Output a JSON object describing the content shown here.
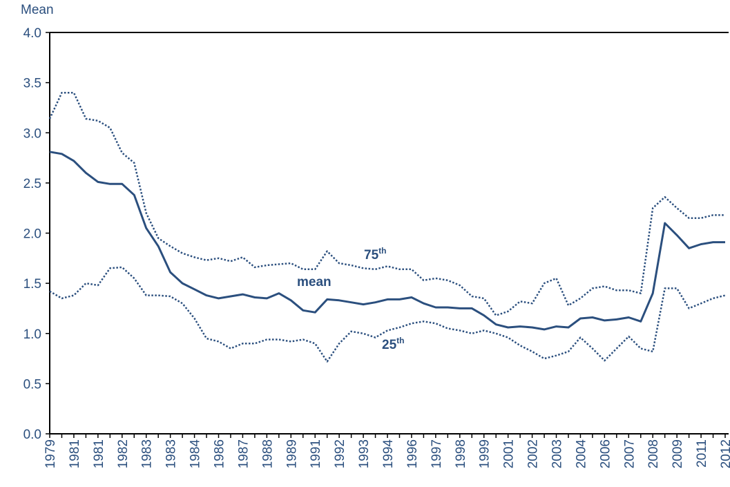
{
  "chart_data": {
    "type": "line",
    "y_axis_label": "Mean",
    "categories": [
      "1979",
      null,
      "1981",
      null,
      "1981",
      null,
      "1982",
      null,
      "1983",
      null,
      "1983",
      null,
      "1984",
      null,
      "1986",
      null,
      "1987",
      null,
      "1988",
      null,
      "1989",
      null,
      "1991",
      null,
      "1992",
      null,
      "1993",
      null,
      "1994",
      null,
      "1996",
      null,
      "1997",
      null,
      "1998",
      null,
      "1999",
      null,
      "2001",
      null,
      "2002",
      null,
      "2003",
      null,
      "2004",
      null,
      "2006",
      null,
      "2007",
      null,
      "2008",
      null,
      "2009",
      null,
      "2011",
      null,
      "2012"
    ],
    "series": [
      {
        "color": "#2b4f7e",
        "style": "solid",
        "values": [
          2.81,
          2.79,
          2.72,
          2.6,
          2.51,
          2.49,
          2.49,
          2.38,
          2.05,
          1.87,
          1.61,
          1.5,
          1.44,
          1.38,
          1.35,
          1.37,
          1.39,
          1.36,
          1.35,
          1.4,
          1.33,
          1.23,
          1.21,
          1.34,
          1.33,
          1.31,
          1.29,
          1.31,
          1.34,
          1.34,
          1.36,
          1.3,
          1.26,
          1.26,
          1.25,
          1.25,
          1.18,
          1.09,
          1.06,
          1.07,
          1.06,
          1.04,
          1.07,
          1.06,
          1.15,
          1.16,
          1.13,
          1.14,
          1.16,
          1.12,
          1.4,
          2.1,
          1.98,
          1.85,
          1.89,
          1.91,
          1.91
        ]
      },
      {
        "color": "#2b4f7e",
        "style": "dotted",
        "values": [
          3.14,
          3.4,
          3.4,
          3.14,
          3.12,
          3.05,
          2.8,
          2.7,
          2.2,
          1.95,
          1.87,
          1.8,
          1.76,
          1.73,
          1.75,
          1.72,
          1.76,
          1.66,
          1.68,
          1.69,
          1.7,
          1.64,
          1.64,
          1.82,
          1.7,
          1.68,
          1.65,
          1.64,
          1.67,
          1.64,
          1.64,
          1.53,
          1.55,
          1.53,
          1.48,
          1.37,
          1.35,
          1.18,
          1.22,
          1.32,
          1.3,
          1.5,
          1.55,
          1.28,
          1.35,
          1.45,
          1.47,
          1.43,
          1.43,
          1.4,
          2.25,
          2.36,
          2.25,
          2.15,
          2.15,
          2.18,
          2.18
        ]
      },
      {
        "color": "#2b4f7e",
        "style": "dotted",
        "values": [
          1.42,
          1.35,
          1.38,
          1.5,
          1.48,
          1.65,
          1.66,
          1.55,
          1.38,
          1.38,
          1.37,
          1.3,
          1.15,
          0.95,
          0.92,
          0.85,
          0.9,
          0.9,
          0.94,
          0.94,
          0.92,
          0.94,
          0.9,
          0.72,
          0.9,
          1.02,
          1.0,
          0.96,
          1.03,
          1.06,
          1.1,
          1.12,
          1.1,
          1.05,
          1.03,
          1.0,
          1.03,
          1.0,
          0.96,
          0.88,
          0.82,
          0.75,
          0.78,
          0.82,
          0.96,
          0.85,
          0.73,
          0.85,
          0.97,
          0.85,
          0.82,
          1.45,
          1.45,
          1.25,
          1.3,
          1.35,
          1.38
        ]
      }
    ],
    "annotations": [
      {
        "text": "75",
        "sup": "th"
      },
      {
        "text": "mean"
      },
      {
        "text": "25",
        "sup": "th"
      }
    ],
    "ylim": [
      0,
      4
    ],
    "yticks": [
      {
        "value": 0,
        "label": "0.0"
      },
      {
        "value": 0.5,
        "label": "0.5"
      },
      {
        "value": 1,
        "label": "1.0"
      },
      {
        "value": 1.5,
        "label": "1.5"
      },
      {
        "value": 2,
        "label": "2.0"
      },
      {
        "value": 2.5,
        "label": "2.5"
      },
      {
        "value": 3,
        "label": "3.0"
      },
      {
        "value": 3.5,
        "label": "3.5"
      },
      {
        "value": 4,
        "label": "4.0"
      }
    ]
  }
}
